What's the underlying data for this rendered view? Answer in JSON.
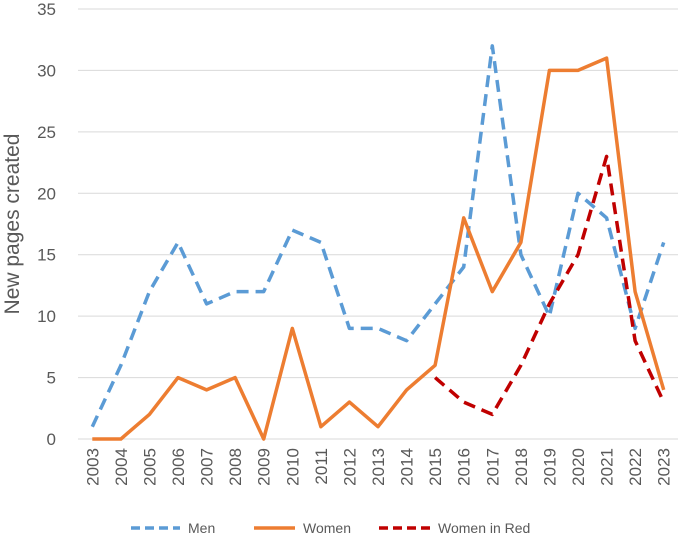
{
  "chart_data": {
    "type": "line",
    "x": [
      "2003",
      "2004",
      "2005",
      "2006",
      "2007",
      "2008",
      "2009",
      "2010",
      "2011",
      "2012",
      "2013",
      "2014",
      "2015",
      "2016",
      "2017",
      "2018",
      "2019",
      "2020",
      "2021",
      "2022",
      "2023"
    ],
    "ylabel": "New pages created",
    "xlabel": "",
    "ylim": [
      0,
      35
    ],
    "yticks": [
      "0",
      "5",
      "10",
      "15",
      "20",
      "25",
      "30",
      "35"
    ],
    "grid": true,
    "legend_position": "bottom",
    "series": [
      {
        "name": "Men",
        "color": "#5b9bd5",
        "dash": "dashed",
        "values": [
          1,
          6,
          12,
          16,
          11,
          12,
          12,
          17,
          16,
          9,
          9,
          8,
          11,
          14,
          32,
          15,
          10,
          20,
          18,
          9,
          16
        ]
      },
      {
        "name": "Women",
        "color": "#ed7d31",
        "dash": "solid",
        "values": [
          0,
          0,
          2,
          5,
          4,
          5,
          0,
          9,
          1,
          3,
          1,
          4,
          6,
          18,
          12,
          16,
          30,
          30,
          31,
          12,
          4
        ]
      },
      {
        "name": "Women in Red",
        "color": "#c00000",
        "dash": "dashed",
        "values": [
          null,
          null,
          null,
          null,
          null,
          null,
          null,
          null,
          null,
          null,
          null,
          null,
          5,
          3,
          2,
          6,
          11,
          15,
          23,
          8,
          3
        ]
      }
    ]
  }
}
